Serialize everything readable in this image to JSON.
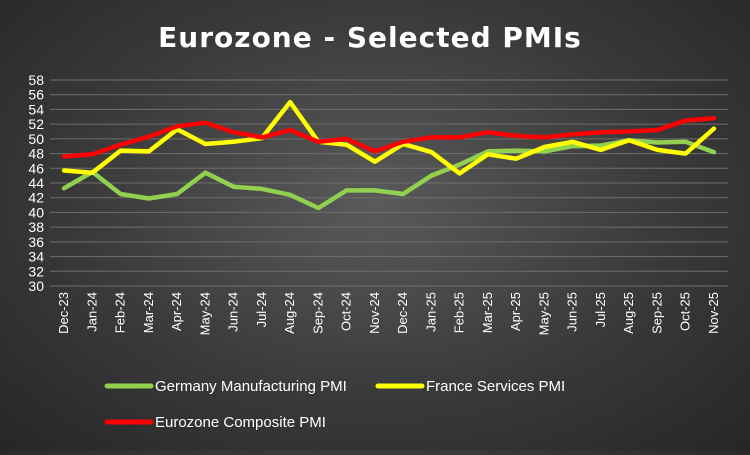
{
  "chart_data": {
    "type": "line",
    "title": "Eurozone - Selected PMIs",
    "xlabel": "",
    "ylabel": "",
    "ylim": [
      30,
      58
    ],
    "yticks": [
      30,
      32,
      34,
      36,
      38,
      40,
      42,
      44,
      46,
      48,
      50,
      52,
      54,
      56,
      58
    ],
    "grid": true,
    "legend_position": "bottom",
    "categories": [
      "Dec-23",
      "Jan-24",
      "Feb-24",
      "Mar-24",
      "Apr-24",
      "May-24",
      "Jun-24",
      "Jul-24",
      "Aug-24",
      "Sep-24",
      "Oct-24",
      "Nov-24",
      "Dec-24",
      "Jan-25",
      "Feb-25",
      "Mar-25",
      "Apr-25",
      "May-25",
      "Jun-25",
      "Jul-25",
      "Aug-25",
      "Sep-25",
      "Oct-25",
      "Nov-25"
    ],
    "series": [
      {
        "name": "Germany Manufacturing PMI",
        "color": "#92d050",
        "values": [
          43.3,
          45.5,
          42.5,
          41.9,
          42.5,
          45.4,
          43.5,
          43.2,
          42.4,
          40.6,
          43.0,
          43.0,
          42.5,
          45.0,
          46.5,
          48.3,
          48.4,
          48.3,
          49.0,
          49.1,
          49.8,
          49.5,
          49.6,
          48.2
        ]
      },
      {
        "name": "France Services PMI",
        "color": "#ffff00",
        "values": [
          45.7,
          45.4,
          48.4,
          48.3,
          51.3,
          49.3,
          49.6,
          50.1,
          55.0,
          49.6,
          49.2,
          46.9,
          49.3,
          48.2,
          45.3,
          47.9,
          47.3,
          48.9,
          49.6,
          48.5,
          49.8,
          48.5,
          48.0,
          51.4
        ]
      },
      {
        "name": "Eurozone Composite PMI",
        "color": "#ff0000",
        "values": [
          47.6,
          47.9,
          49.2,
          50.3,
          51.7,
          52.2,
          50.9,
          50.2,
          51.2,
          49.6,
          50.0,
          48.3,
          49.6,
          50.2,
          50.2,
          50.9,
          50.4,
          50.2,
          50.6,
          50.9,
          51.0,
          51.2,
          52.5,
          52.8
        ]
      }
    ]
  }
}
